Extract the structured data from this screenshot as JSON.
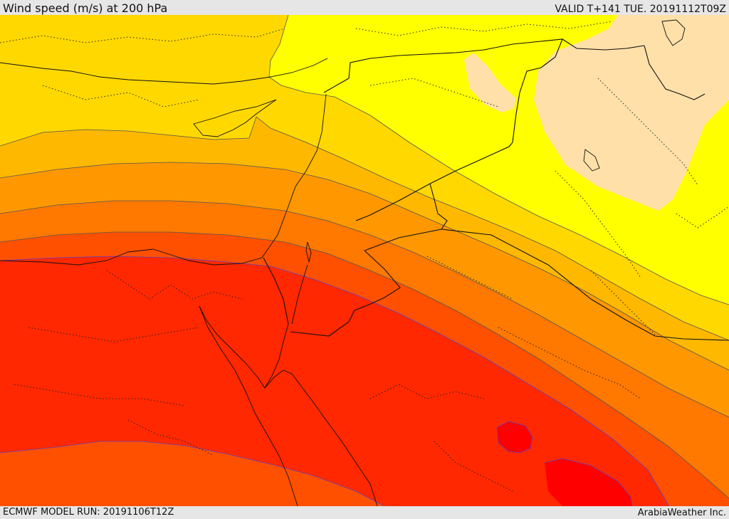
{
  "header": {
    "title": "Wind speed (m/s) at 200 hPa",
    "valid": "VALID T+141 TUE. 20191112T09Z"
  },
  "footer": {
    "model_run": "ECMWF MODEL RUN: 20191106T12Z",
    "credit": "ArabiaWeather Inc."
  },
  "colors": {
    "band_0": "#ffe0a8",
    "band_1": "#ffff00",
    "band_2": "#ffd800",
    "band_3": "#ffb800",
    "band_4": "#ff9800",
    "band_5": "#ff7800",
    "band_6": "#ff5000",
    "band_7": "#ff2800",
    "band_8": "#ff0000",
    "border": "#111111"
  }
}
